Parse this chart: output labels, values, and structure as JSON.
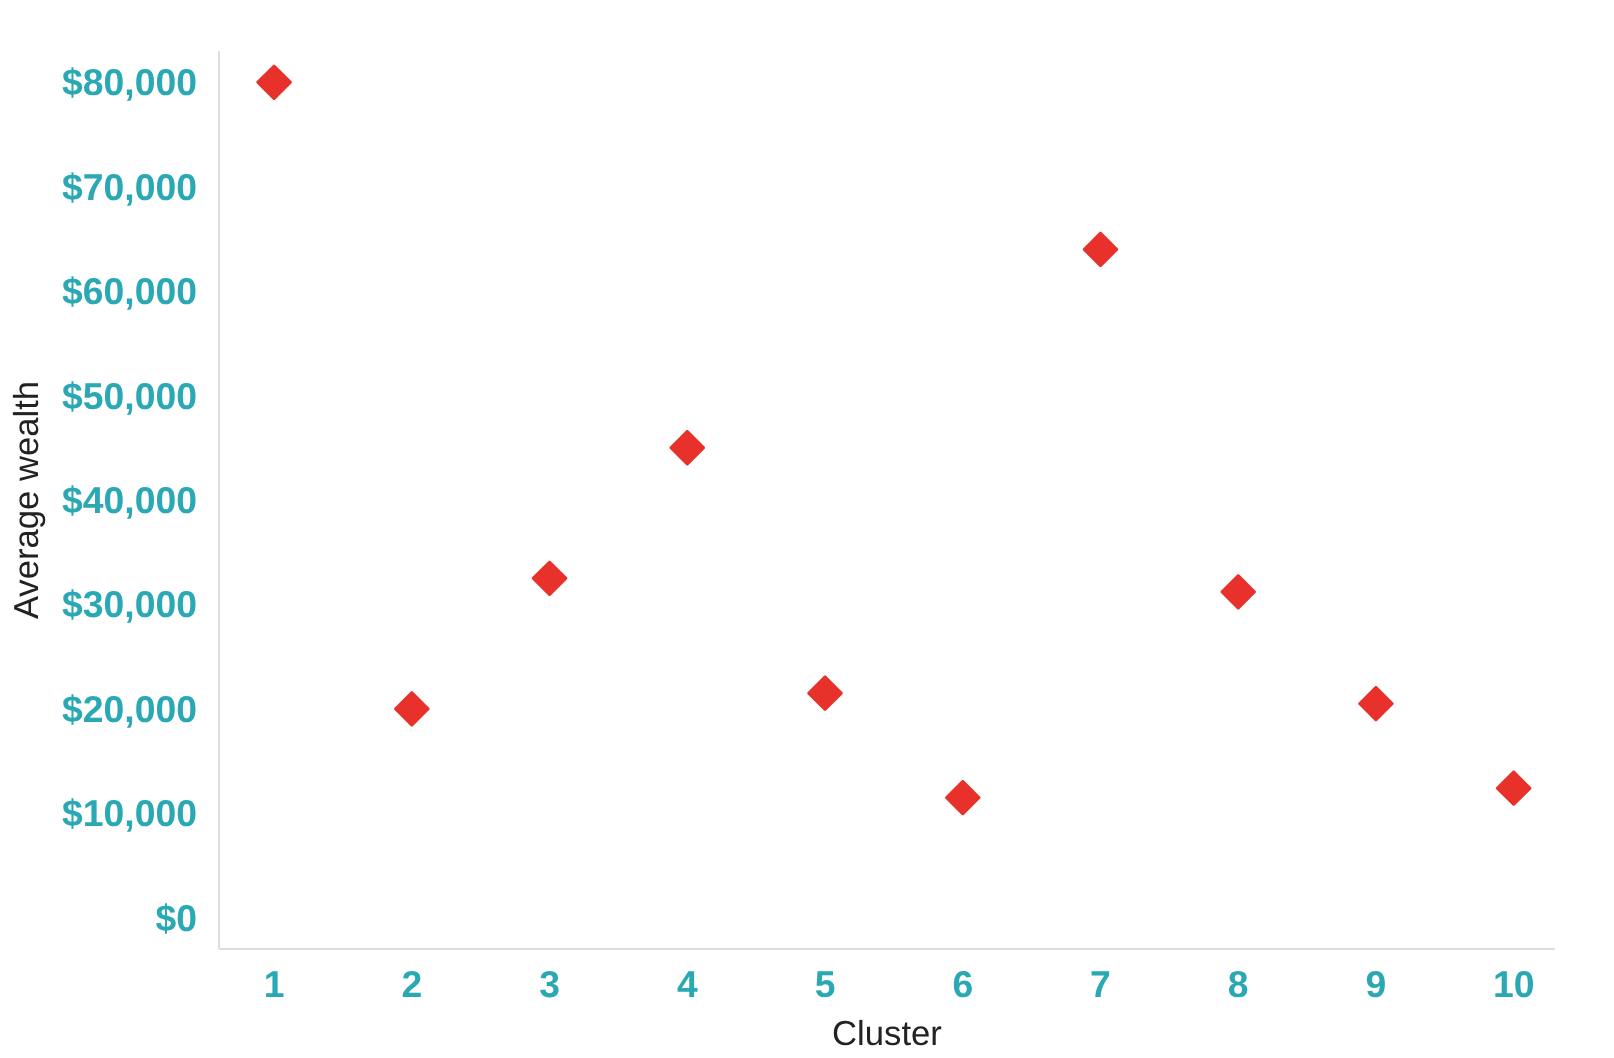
{
  "chart_data": {
    "type": "scatter",
    "xlabel": "Cluster",
    "ylabel": "Average wealth",
    "x": [
      1,
      2,
      3,
      4,
      5,
      6,
      7,
      8,
      9,
      10
    ],
    "series": [
      {
        "color": "#e8312a",
        "values": [
          80000,
          20000,
          32500,
          45000,
          21500,
          11500,
          64000,
          31200,
          20500,
          12400
        ]
      }
    ],
    "xticks": [
      1,
      2,
      3,
      4,
      5,
      6,
      7,
      8,
      9,
      10
    ],
    "yticks": [
      {
        "value": 0,
        "label": "$0"
      },
      {
        "value": 10000,
        "label": "$10,000"
      },
      {
        "value": 20000,
        "label": "$20,000"
      },
      {
        "value": 30000,
        "label": "$30,000"
      },
      {
        "value": 40000,
        "label": "$40,000"
      },
      {
        "value": 50000,
        "label": "$50,000"
      },
      {
        "value": 60000,
        "label": "$60,000"
      },
      {
        "value": 70000,
        "label": "$70,000"
      },
      {
        "value": 80000,
        "label": "$80,000"
      }
    ],
    "xlim": [
      0.6,
      10.3
    ],
    "ylim": [
      -3000,
      83000
    ],
    "marker": "diamond",
    "grid": false
  }
}
